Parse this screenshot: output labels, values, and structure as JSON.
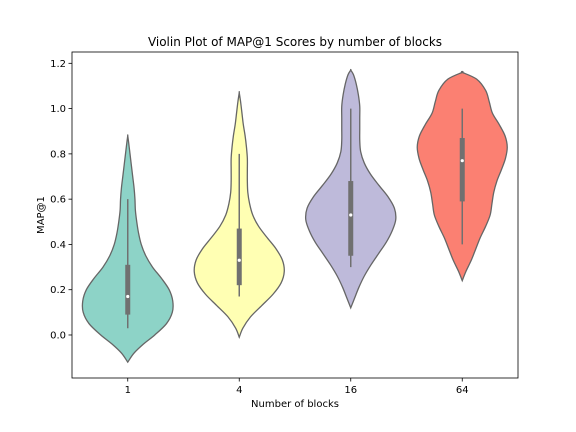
{
  "chart_data": {
    "type": "violin",
    "title": "Violin Plot of MAP@1 Scores by number of blocks",
    "xlabel": "Number of blocks",
    "ylabel": "MAP@1",
    "categories": [
      "1",
      "4",
      "16",
      "64"
    ],
    "ylim": [
      -0.19,
      1.25
    ],
    "yticks": [
      0.0,
      0.2,
      0.4,
      0.6,
      0.8,
      1.0,
      1.2
    ],
    "ytick_labels": [
      "0.0",
      "0.2",
      "0.4",
      "0.6",
      "0.8",
      "1.0",
      "1.2"
    ],
    "grid": false,
    "series": [
      {
        "category": "1",
        "color": "#8dd3c7",
        "min": 0.03,
        "q1": 0.09,
        "median": 0.17,
        "q3": 0.31,
        "max": 0.6,
        "density": [
          [
            -0.12,
            0.0
          ],
          [
            -0.08,
            0.14
          ],
          [
            -0.04,
            0.35
          ],
          [
            0.0,
            0.6
          ],
          [
            0.05,
            0.86
          ],
          [
            0.1,
            0.99
          ],
          [
            0.15,
            1.0
          ],
          [
            0.2,
            0.92
          ],
          [
            0.25,
            0.75
          ],
          [
            0.3,
            0.55
          ],
          [
            0.35,
            0.4
          ],
          [
            0.4,
            0.3
          ],
          [
            0.45,
            0.24
          ],
          [
            0.5,
            0.2
          ],
          [
            0.55,
            0.17
          ],
          [
            0.6,
            0.16
          ],
          [
            0.65,
            0.14
          ],
          [
            0.7,
            0.11
          ],
          [
            0.75,
            0.08
          ],
          [
            0.8,
            0.05
          ],
          [
            0.85,
            0.02
          ],
          [
            0.88,
            0.0
          ]
        ]
      },
      {
        "category": "4",
        "color": "#ffffb3",
        "min": 0.17,
        "q1": 0.22,
        "median": 0.33,
        "q3": 0.47,
        "max": 0.8,
        "density": [
          [
            -0.01,
            0.0
          ],
          [
            0.03,
            0.08
          ],
          [
            0.08,
            0.25
          ],
          [
            0.13,
            0.5
          ],
          [
            0.18,
            0.75
          ],
          [
            0.23,
            0.93
          ],
          [
            0.28,
            1.0
          ],
          [
            0.33,
            0.96
          ],
          [
            0.38,
            0.82
          ],
          [
            0.43,
            0.62
          ],
          [
            0.48,
            0.43
          ],
          [
            0.53,
            0.3
          ],
          [
            0.58,
            0.23
          ],
          [
            0.63,
            0.19
          ],
          [
            0.68,
            0.18
          ],
          [
            0.73,
            0.18
          ],
          [
            0.78,
            0.18
          ],
          [
            0.83,
            0.16
          ],
          [
            0.88,
            0.13
          ],
          [
            0.93,
            0.09
          ],
          [
            0.98,
            0.06
          ],
          [
            1.03,
            0.03
          ],
          [
            1.07,
            0.0
          ]
        ]
      },
      {
        "category": "16",
        "color": "#bebada",
        "min": 0.3,
        "q1": 0.35,
        "median": 0.53,
        "q3": 0.68,
        "max": 1.0,
        "density": [
          [
            0.12,
            0.0
          ],
          [
            0.16,
            0.08
          ],
          [
            0.21,
            0.18
          ],
          [
            0.26,
            0.3
          ],
          [
            0.31,
            0.45
          ],
          [
            0.36,
            0.62
          ],
          [
            0.41,
            0.79
          ],
          [
            0.46,
            0.92
          ],
          [
            0.51,
            1.0
          ],
          [
            0.56,
            0.97
          ],
          [
            0.61,
            0.83
          ],
          [
            0.66,
            0.63
          ],
          [
            0.71,
            0.44
          ],
          [
            0.76,
            0.3
          ],
          [
            0.81,
            0.22
          ],
          [
            0.86,
            0.2
          ],
          [
            0.91,
            0.2
          ],
          [
            0.96,
            0.2
          ],
          [
            1.01,
            0.2
          ],
          [
            1.06,
            0.17
          ],
          [
            1.11,
            0.12
          ],
          [
            1.15,
            0.06
          ],
          [
            1.17,
            0.0
          ]
        ]
      },
      {
        "category": "64",
        "color": "#fb8072",
        "min": 0.4,
        "q1": 0.59,
        "median": 0.77,
        "q3": 0.87,
        "max": 1.0,
        "density": [
          [
            0.24,
            0.0
          ],
          [
            0.28,
            0.08
          ],
          [
            0.33,
            0.2
          ],
          [
            0.38,
            0.3
          ],
          [
            0.43,
            0.4
          ],
          [
            0.48,
            0.52
          ],
          [
            0.53,
            0.62
          ],
          [
            0.58,
            0.66
          ],
          [
            0.63,
            0.7
          ],
          [
            0.68,
            0.77
          ],
          [
            0.73,
            0.87
          ],
          [
            0.78,
            0.96
          ],
          [
            0.83,
            1.0
          ],
          [
            0.88,
            0.95
          ],
          [
            0.93,
            0.82
          ],
          [
            0.98,
            0.67
          ],
          [
            1.03,
            0.6
          ],
          [
            1.08,
            0.52
          ],
          [
            1.13,
            0.32
          ],
          [
            1.16,
            0.0
          ]
        ]
      }
    ]
  }
}
